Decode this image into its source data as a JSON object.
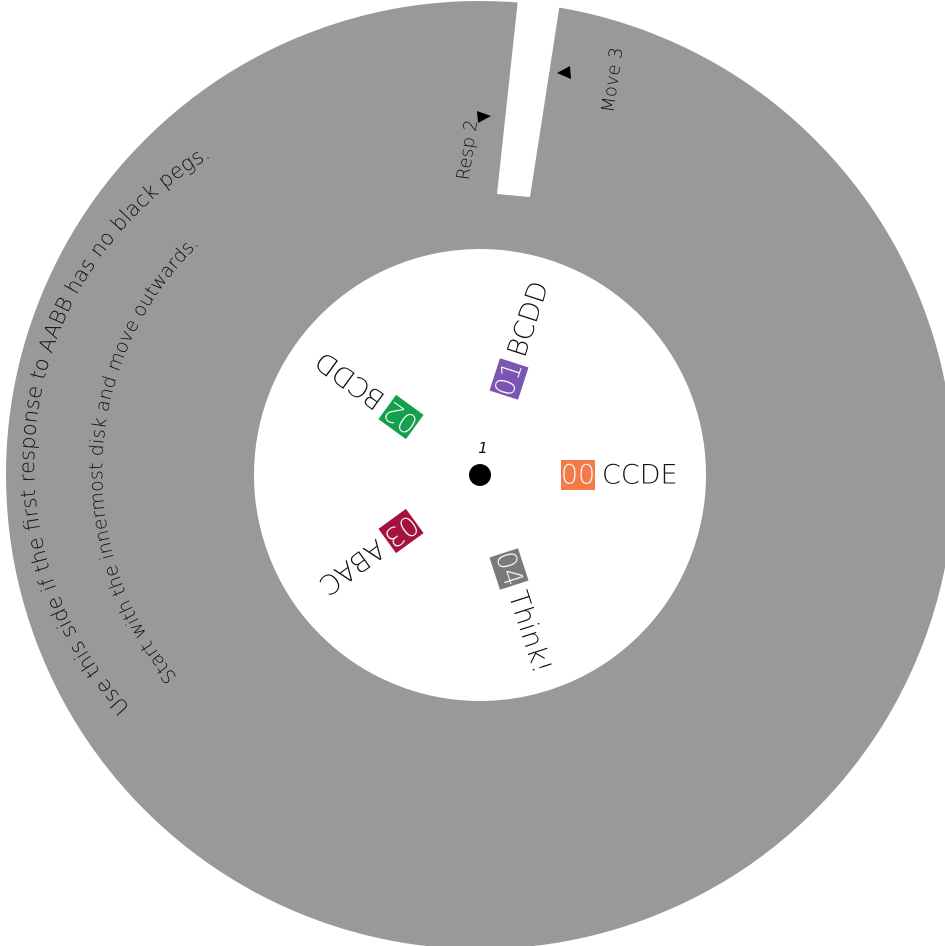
{
  "disk": {
    "hub_label": "1",
    "ring_color": "#999999",
    "instructions": {
      "line1": "Use this side if the first response to AABB has no black pegs.",
      "line2": "Start with the innermost disk and move outwards."
    },
    "gap_labels": {
      "response": "Resp 2",
      "move": "Move 3"
    }
  },
  "guesses": [
    {
      "number": "00",
      "code": "CCDE",
      "color": "#f47a4a"
    },
    {
      "number": "01",
      "code": "BCDD",
      "color": "#7b55b3"
    },
    {
      "number": "02",
      "code": "BCDD",
      "color": "#13a04a"
    },
    {
      "number": "03",
      "code": "ABAC",
      "color": "#a51240"
    },
    {
      "number": "04",
      "code": "Think!",
      "color": "#7a7a7a"
    }
  ]
}
